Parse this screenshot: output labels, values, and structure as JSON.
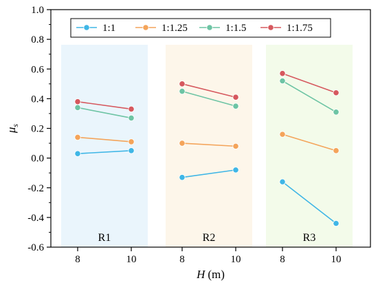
{
  "chart_data": {
    "type": "line",
    "xlabel": {
      "var": "H",
      "unit": "(m)"
    },
    "ylabel": {
      "var": "μ",
      "sub": "s"
    },
    "ylim": [
      -0.6,
      1.0
    ],
    "yticks": [
      "-0.6",
      "-0.4",
      "-0.2",
      "0.0",
      "0.2",
      "0.4",
      "0.6",
      "0.8",
      "1.0"
    ],
    "grid": false,
    "legend_position": "top",
    "groups": [
      {
        "name": "R1",
        "x": [
          "8",
          "10"
        ],
        "color": "#eaf5fc",
        "series": [
          {
            "name": "1:1",
            "values": [
              0.03,
              0.05
            ]
          },
          {
            "name": "1:1.25",
            "values": [
              0.14,
              0.11
            ]
          },
          {
            "name": "1:1.5",
            "values": [
              0.34,
              0.27
            ]
          },
          {
            "name": "1:1.75",
            "values": [
              0.38,
              0.33
            ]
          }
        ]
      },
      {
        "name": "R2",
        "x": [
          "8",
          "10"
        ],
        "color": "#fdf6ea",
        "series": [
          {
            "name": "1:1",
            "values": [
              -0.13,
              -0.08
            ]
          },
          {
            "name": "1:1.25",
            "values": [
              0.1,
              0.08
            ]
          },
          {
            "name": "1:1.5",
            "values": [
              0.45,
              0.35
            ]
          },
          {
            "name": "1:1.75",
            "values": [
              0.5,
              0.41
            ]
          }
        ]
      },
      {
        "name": "R3",
        "x": [
          "8",
          "10"
        ],
        "color": "#f3fbea",
        "series": [
          {
            "name": "1:1",
            "values": [
              -0.16,
              -0.44
            ]
          },
          {
            "name": "1:1.25",
            "values": [
              0.16,
              0.05
            ]
          },
          {
            "name": "1:1.5",
            "values": [
              0.52,
              0.31
            ]
          },
          {
            "name": "1:1.75",
            "values": [
              0.57,
              0.44
            ]
          }
        ]
      }
    ],
    "legend": [
      {
        "name": "1:1",
        "color": "#3fb6e6"
      },
      {
        "name": "1:1.25",
        "color": "#f4a45a"
      },
      {
        "name": "1:1.5",
        "color": "#6dc4a4"
      },
      {
        "name": "1:1.75",
        "color": "#d6585e"
      }
    ]
  }
}
